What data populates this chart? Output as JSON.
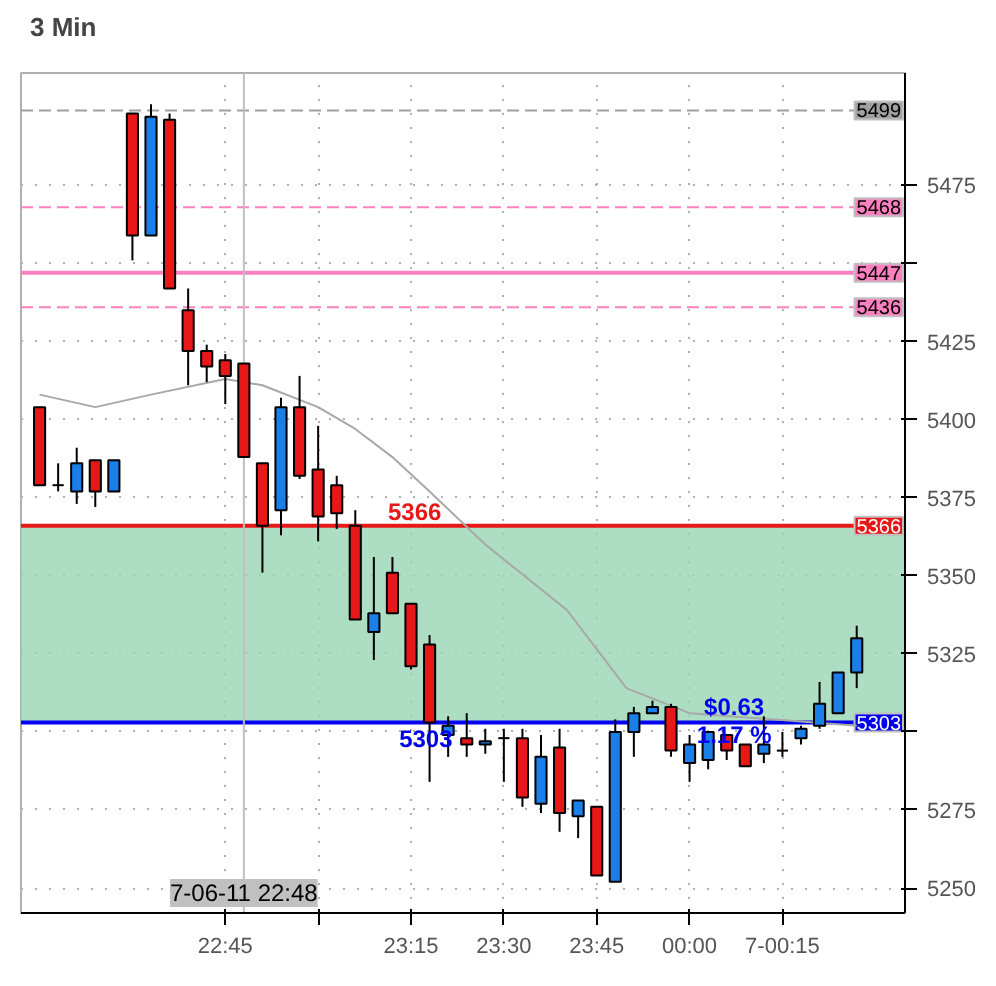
{
  "chart_data": {
    "type": "candlestick",
    "title": "3 Min",
    "x": [
      22.25,
      22.3,
      22.35,
      22.4,
      22.45,
      22.5,
      22.55,
      22.6,
      22.65,
      22.7,
      22.75,
      22.8,
      22.85,
      22.9,
      22.95,
      23.0,
      23.05,
      23.1,
      23.15,
      23.2,
      23.25,
      23.3,
      23.35,
      23.4,
      23.45,
      23.5,
      23.55,
      23.6,
      23.65,
      23.7,
      23.75,
      23.8,
      23.85,
      23.9,
      23.95,
      24.0,
      24.05,
      24.1,
      24.15,
      24.2,
      24.25,
      24.3,
      24.35,
      24.4,
      24.45
    ],
    "ohlc": [
      [
        5404,
        5404,
        5379,
        5379
      ],
      [
        5379,
        5386,
        5377,
        5379
      ],
      [
        5377,
        5391,
        5373,
        5386
      ],
      [
        5387,
        5387,
        5372,
        5377
      ],
      [
        5377,
        5387,
        5377,
        5387
      ],
      [
        5498,
        5498,
        5451,
        5459
      ],
      [
        5459,
        5501,
        5459,
        5497
      ],
      [
        5496,
        5498,
        5442,
        5442
      ],
      [
        5435,
        5442,
        5411,
        5422
      ],
      [
        5422,
        5424,
        5412,
        5417
      ],
      [
        5419,
        5421,
        5405,
        5414
      ],
      [
        5418,
        5418,
        5388,
        5388
      ],
      [
        5386,
        5386,
        5351,
        5366
      ],
      [
        5371,
        5407,
        5363,
        5404
      ],
      [
        5404,
        5414,
        5381,
        5382
      ],
      [
        5384,
        5398,
        5361,
        5369
      ],
      [
        5379,
        5382,
        5365,
        5370
      ],
      [
        5366,
        5371,
        5336,
        5336
      ],
      [
        5332,
        5356,
        5323,
        5338
      ],
      [
        5351,
        5356,
        5338,
        5338
      ],
      [
        5341,
        5341,
        5320,
        5321
      ],
      [
        5328,
        5331,
        5284,
        5303
      ],
      [
        5299,
        5305,
        5292,
        5302
      ],
      [
        5298,
        5306,
        5292,
        5296
      ],
      [
        5296,
        5301,
        5293,
        5297
      ],
      [
        5298,
        5301,
        5284,
        5298
      ],
      [
        5298,
        5301,
        5276,
        5279
      ],
      [
        5277,
        5299,
        5274,
        5292
      ],
      [
        5295,
        5301,
        5268,
        5274
      ],
      [
        5273,
        5278,
        5266,
        5278
      ],
      [
        5276,
        5276,
        5254,
        5254
      ],
      [
        5252,
        5304,
        5252,
        5300
      ],
      [
        5300,
        5308,
        5292,
        5306
      ],
      [
        5306,
        5310,
        5306,
        5308
      ],
      [
        5308,
        5309,
        5292,
        5294
      ],
      [
        5290,
        5299,
        5284,
        5296
      ],
      [
        5291,
        5300,
        5288,
        5300
      ],
      [
        5299,
        5299,
        5291,
        5294
      ],
      [
        5296,
        5296,
        5289,
        5289
      ],
      [
        5293,
        5305,
        5290,
        5296
      ],
      [
        5294,
        5300,
        5292,
        5294
      ],
      [
        5298,
        5302,
        5296,
        5301
      ],
      [
        5302,
        5316,
        5301,
        5309
      ],
      [
        5306,
        5319,
        5306,
        5319
      ],
      [
        5319,
        5334,
        5314,
        5330
      ]
    ],
    "colors": [
      "#e81818",
      "#000000",
      "#1a7fe8",
      "#e81818",
      "#1a7fe8",
      "#e81818",
      "#1a7fe8",
      "#e81818",
      "#e81818",
      "#e81818",
      "#e81818",
      "#e81818",
      "#e81818",
      "#1a7fe8",
      "#e81818",
      "#e81818",
      "#e81818",
      "#e81818",
      "#1a7fe8",
      "#e81818",
      "#e81818",
      "#e81818",
      "#1a7fe8",
      "#e81818",
      "#1a7fe8",
      "#000000",
      "#e81818",
      "#1a7fe8",
      "#e81818",
      "#1a7fe8",
      "#e81818",
      "#1a7fe8",
      "#1a7fe8",
      "#1a7fe8",
      "#e81818",
      "#1a7fe8",
      "#1a7fe8",
      "#e81818",
      "#e81818",
      "#1a7fe8",
      "#000000",
      "#1a7fe8",
      "#1a7fe8",
      "#1a7fe8",
      "#1a7fe8"
    ],
    "series": [
      {
        "type": "line",
        "color": "#a8a8a8",
        "x": [
          22.25,
          22.4,
          22.55,
          22.75,
          22.85,
          23.0,
          23.1,
          23.2,
          23.3,
          23.45,
          23.67,
          23.83,
          24.0,
          24.45
        ],
        "values": [
          5408,
          5404,
          5408,
          5413,
          5411,
          5404,
          5397,
          5388,
          5377,
          5360,
          5339,
          5314,
          5306,
          5302
        ]
      }
    ],
    "xlim": [
      22.2,
      24.58
    ],
    "ylim": [
      5242,
      5511
    ],
    "xticks": [
      {
        "value": 22.75,
        "label": "22:45"
      },
      {
        "value": 23.0,
        "label": null
      },
      {
        "value": 23.25,
        "label": "23:15"
      },
      {
        "value": 23.5,
        "label": "23:30"
      },
      {
        "value": 23.75,
        "label": "23:45"
      },
      {
        "value": 24.0,
        "label": "00:00"
      },
      {
        "value": 24.25,
        "label": "7-00:15"
      }
    ],
    "yticks": [
      5250,
      5275,
      {
        "value": 5300,
        "label": null
      },
      5325,
      5350,
      5375,
      5400,
      5425,
      {
        "value": 5450,
        "label": null
      },
      5475
    ],
    "ref_lines": [
      {
        "axis": "y",
        "value": 5499,
        "label": "5499",
        "color": "#a0a0a0",
        "line_style": "dashed"
      },
      {
        "axis": "y",
        "value": 5468,
        "label": "5468",
        "color": "#ff80c0",
        "line_style": "dashed"
      },
      {
        "axis": "y",
        "value": 5447,
        "label": "5447",
        "color": "#ff80c0",
        "line_style": "solid"
      },
      {
        "axis": "y",
        "value": 5436,
        "label": "5436",
        "color": "#ff80c0",
        "line_style": "dashed"
      },
      {
        "axis": "y",
        "value": 5366,
        "label": "5366",
        "color": "#e81818",
        "line_style": "solid"
      },
      {
        "axis": "y",
        "value": 5303,
        "label": "5303",
        "color": "#0000f0",
        "line_style": "solid"
      },
      {
        "axis": "x",
        "value": 22.8,
        "color": "#c0c0c0",
        "line_style": "solid"
      }
    ],
    "bands": [
      {
        "axis": "y",
        "from": 5303,
        "to": 5366,
        "color": "#99d5b3"
      }
    ],
    "annotations": [
      {
        "text": "5366",
        "x": 23.26,
        "y": 5366
      },
      {
        "text": "5303",
        "x": 23.29,
        "y": 5303
      },
      {
        "text": "$0.63",
        "x": 24.12,
        "y": 5308
      },
      {
        "text": "1.17 %",
        "x": 24.12,
        "y": 5299
      },
      "7-06-11 22:48"
    ],
    "grid": true
  }
}
